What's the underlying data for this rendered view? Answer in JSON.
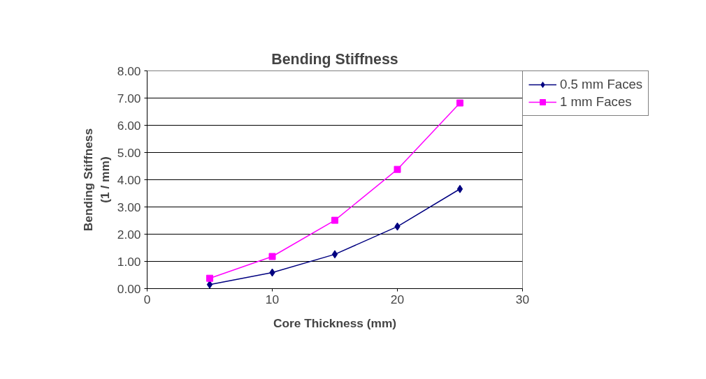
{
  "chart_data": {
    "type": "line",
    "title": "Bending Stiffness",
    "xlabel": "Core Thickness (mm)",
    "ylabel": "Bending Stiffness\n(1 / mm)",
    "x": [
      5,
      10,
      15,
      20,
      25
    ],
    "series": [
      {
        "name": "0.5 mm Faces",
        "color": "#000080",
        "values": [
          0.15,
          0.59,
          1.26,
          2.28,
          3.66
        ],
        "marker": "diamond"
      },
      {
        "name": "1 mm Faces",
        "color": "#ff00ff",
        "values": [
          0.38,
          1.18,
          2.51,
          4.38,
          6.82
        ],
        "marker": "square"
      }
    ],
    "xlim": [
      0,
      30
    ],
    "xticks": [
      0,
      10,
      20,
      30
    ],
    "ylim": [
      0,
      8
    ],
    "yticks": [
      {
        "value": 0,
        "label": "0.00"
      },
      {
        "value": 1,
        "label": "1.00"
      },
      {
        "value": 2,
        "label": "2.00"
      },
      {
        "value": 3,
        "label": "3.00"
      },
      {
        "value": 4,
        "label": "4.00"
      },
      {
        "value": 5,
        "label": "5.00"
      },
      {
        "value": 6,
        "label": "6.00"
      },
      {
        "value": 7,
        "label": "7.00"
      },
      {
        "value": 8,
        "label": "8.00"
      }
    ],
    "grid": "y",
    "legend": "top right",
    "line_style": "solid"
  }
}
